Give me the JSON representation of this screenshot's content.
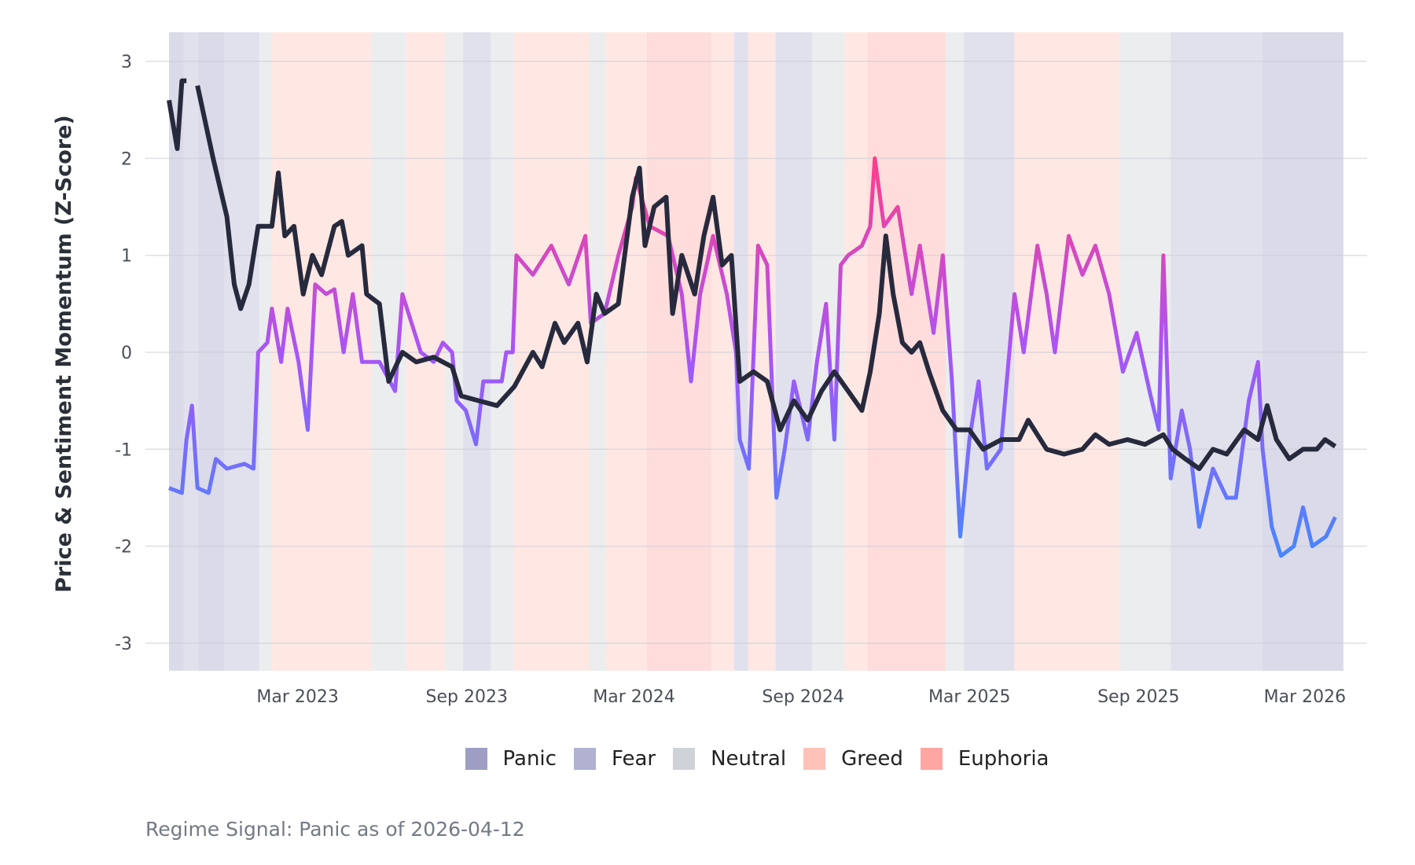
{
  "chart_data": {
    "type": "line",
    "title": "",
    "ylabel": "Price & Sentiment Momentum (Z-Score)",
    "xlabel": "",
    "x_unit": "days since start_date",
    "start_date": "2022-10-12",
    "end_date": "2026-04-12",
    "ylim": [
      -3.3,
      3.3
    ],
    "yticks": [
      3,
      2,
      1,
      0,
      -1,
      -2,
      -3
    ],
    "xticks": [
      {
        "label": "Mar 2023",
        "date": "2023-03-01"
      },
      {
        "label": "Sep 2023",
        "date": "2023-09-01"
      },
      {
        "label": "Mar 2024",
        "date": "2024-03-01"
      },
      {
        "label": "Sep 2024",
        "date": "2024-09-01"
      },
      {
        "label": "Mar 2025",
        "date": "2025-03-01"
      },
      {
        "label": "Sep 2025",
        "date": "2025-09-01"
      },
      {
        "label": "Mar 2026",
        "date": "2026-03-01"
      }
    ],
    "grid": "horizontal",
    "legend_position": "bottom-center",
    "legend": [
      {
        "label": "Panic",
        "color": "#9e9ec4"
      },
      {
        "label": "Fear",
        "color": "#b1b1d1"
      },
      {
        "label": "Neutral",
        "color": "#cfd3d7"
      },
      {
        "label": "Greed",
        "color": "#ffc2b8"
      },
      {
        "label": "Euphoria",
        "color": "#ffa6a3"
      }
    ],
    "regimes": [
      [
        0,
        16,
        "Panic"
      ],
      [
        16,
        32,
        "Fear"
      ],
      [
        32,
        60,
        "Panic"
      ],
      [
        60,
        98,
        "Fear"
      ],
      [
        98,
        112,
        "Neutral"
      ],
      [
        112,
        220,
        "Greed"
      ],
      [
        220,
        258,
        "Neutral"
      ],
      [
        258,
        300,
        "Greed"
      ],
      [
        300,
        320,
        "Neutral"
      ],
      [
        320,
        350,
        "Fear"
      ],
      [
        350,
        375,
        "Neutral"
      ],
      [
        375,
        458,
        "Greed"
      ],
      [
        458,
        475,
        "Neutral"
      ],
      [
        475,
        520,
        "Greed"
      ],
      [
        520,
        590,
        "Euphoria"
      ],
      [
        590,
        615,
        "Greed"
      ],
      [
        615,
        630,
        "Fear"
      ],
      [
        630,
        660,
        "Greed"
      ],
      [
        660,
        700,
        "Fear"
      ],
      [
        700,
        735,
        "Neutral"
      ],
      [
        735,
        760,
        "Greed"
      ],
      [
        760,
        845,
        "Euphoria"
      ],
      [
        845,
        865,
        "Neutral"
      ],
      [
        865,
        920,
        "Fear"
      ],
      [
        920,
        1035,
        "Greed"
      ],
      [
        1035,
        1090,
        "Neutral"
      ],
      [
        1090,
        1190,
        "Fear"
      ],
      [
        1190,
        1278,
        "Panic"
      ]
    ],
    "series": [
      {
        "name": "Price Momentum",
        "color": "#272a3d",
        "points": [
          [
            0,
            2.6
          ],
          [
            9,
            2.1
          ],
          [
            14,
            2.8
          ],
          [
            19,
            2.8
          ],
          [
            25,
            null
          ],
          [
            31,
            2.75
          ],
          [
            48,
            2.0
          ],
          [
            63,
            1.4
          ],
          [
            71,
            0.7
          ],
          [
            78,
            0.45
          ],
          [
            87,
            0.7
          ],
          [
            97,
            1.3
          ],
          [
            112,
            1.3
          ],
          [
            119,
            1.85
          ],
          [
            126,
            1.2
          ],
          [
            136,
            1.3
          ],
          [
            146,
            0.6
          ],
          [
            156,
            1.0
          ],
          [
            166,
            0.8
          ],
          [
            180,
            1.3
          ],
          [
            188,
            1.35
          ],
          [
            195,
            1.0
          ],
          [
            210,
            1.1
          ],
          [
            215,
            0.6
          ],
          [
            229,
            0.5
          ],
          [
            239,
            -0.3
          ],
          [
            254,
            0.0
          ],
          [
            269,
            -0.1
          ],
          [
            288,
            -0.05
          ],
          [
            308,
            -0.15
          ],
          [
            318,
            -0.45
          ],
          [
            337,
            -0.5
          ],
          [
            357,
            -0.55
          ],
          [
            376,
            -0.35
          ],
          [
            396,
            0.0
          ],
          [
            406,
            -0.15
          ],
          [
            420,
            0.3
          ],
          [
            430,
            0.1
          ],
          [
            445,
            0.3
          ],
          [
            455,
            -0.1
          ],
          [
            465,
            0.6
          ],
          [
            474,
            0.4
          ],
          [
            489,
            0.5
          ],
          [
            504,
            1.6
          ],
          [
            512,
            1.9
          ],
          [
            518,
            1.1
          ],
          [
            528,
            1.5
          ],
          [
            541,
            1.6
          ],
          [
            548,
            0.4
          ],
          [
            558,
            1.0
          ],
          [
            572,
            0.6
          ],
          [
            582,
            1.2
          ],
          [
            592,
            1.6
          ],
          [
            602,
            0.9
          ],
          [
            612,
            1.0
          ],
          [
            621,
            -0.3
          ],
          [
            636,
            -0.2
          ],
          [
            651,
            -0.3
          ],
          [
            665,
            -0.8
          ],
          [
            680,
            -0.5
          ],
          [
            695,
            -0.7
          ],
          [
            710,
            -0.4
          ],
          [
            724,
            -0.2
          ],
          [
            739,
            -0.4
          ],
          [
            754,
            -0.6
          ],
          [
            763,
            -0.2
          ],
          [
            773,
            0.4
          ],
          [
            780,
            1.2
          ],
          [
            788,
            0.6
          ],
          [
            798,
            0.1
          ],
          [
            808,
            0.0
          ],
          [
            817,
            0.1
          ],
          [
            827,
            -0.2
          ],
          [
            842,
            -0.6
          ],
          [
            857,
            -0.8
          ],
          [
            871,
            -0.8
          ],
          [
            886,
            -1.0
          ],
          [
            906,
            -0.9
          ],
          [
            925,
            -0.9
          ],
          [
            935,
            -0.7
          ],
          [
            955,
            -1.0
          ],
          [
            974,
            -1.05
          ],
          [
            994,
            -1.0
          ],
          [
            1008,
            -0.85
          ],
          [
            1023,
            -0.95
          ],
          [
            1043,
            -0.9
          ],
          [
            1062,
            -0.95
          ],
          [
            1082,
            -0.85
          ],
          [
            1092,
            -1.0
          ],
          [
            1106,
            -1.1
          ],
          [
            1121,
            -1.2
          ],
          [
            1136,
            -1.0
          ],
          [
            1151,
            -1.05
          ],
          [
            1170,
            -0.8
          ],
          [
            1185,
            -0.9
          ],
          [
            1195,
            -0.55
          ],
          [
            1205,
            -0.9
          ],
          [
            1219,
            -1.1
          ],
          [
            1234,
            -1.0
          ],
          [
            1249,
            -1.0
          ],
          [
            1258,
            -0.9
          ],
          [
            1269,
            -0.97
          ]
        ]
      },
      {
        "name": "Sentiment Momentum",
        "color_scale": [
          "#4a84ff",
          "#a855f7",
          "#ff3d8b"
        ],
        "points": [
          [
            0,
            -1.4
          ],
          [
            14,
            -1.45
          ],
          [
            19,
            -0.9
          ],
          [
            25,
            -0.55
          ],
          [
            31,
            -1.4
          ],
          [
            43,
            -1.45
          ],
          [
            51,
            -1.1
          ],
          [
            63,
            -1.2
          ],
          [
            82,
            -1.15
          ],
          [
            92,
            -1.2
          ],
          [
            97,
            0.0
          ],
          [
            107,
            0.1
          ],
          [
            112,
            0.45
          ],
          [
            122,
            -0.1
          ],
          [
            129,
            0.45
          ],
          [
            141,
            -0.1
          ],
          [
            151,
            -0.8
          ],
          [
            159,
            0.7
          ],
          [
            171,
            0.6
          ],
          [
            180,
            0.65
          ],
          [
            190,
            0.0
          ],
          [
            200,
            0.6
          ],
          [
            210,
            -0.1
          ],
          [
            229,
            -0.1
          ],
          [
            246,
            -0.4
          ],
          [
            254,
            0.6
          ],
          [
            264,
            0.3
          ],
          [
            274,
            0.0
          ],
          [
            288,
            -0.1
          ],
          [
            298,
            0.1
          ],
          [
            308,
            0.0
          ],
          [
            313,
            -0.5
          ],
          [
            323,
            -0.6
          ],
          [
            334,
            -0.95
          ],
          [
            342,
            -0.3
          ],
          [
            362,
            -0.3
          ],
          [
            367,
            0.0
          ],
          [
            374,
            0.0
          ],
          [
            378,
            1.0
          ],
          [
            396,
            0.8
          ],
          [
            416,
            1.1
          ],
          [
            435,
            0.7
          ],
          [
            453,
            1.2
          ],
          [
            459,
            0.3
          ],
          [
            474,
            0.4
          ],
          [
            489,
            1.0
          ],
          [
            504,
            1.5
          ],
          [
            508,
            1.8
          ],
          [
            523,
            1.3
          ],
          [
            543,
            1.2
          ],
          [
            558,
            0.6
          ],
          [
            568,
            -0.3
          ],
          [
            578,
            0.6
          ],
          [
            592,
            1.2
          ],
          [
            607,
            0.6
          ],
          [
            617,
            0.0
          ],
          [
            621,
            -0.9
          ],
          [
            631,
            -1.2
          ],
          [
            641,
            1.1
          ],
          [
            651,
            0.9
          ],
          [
            661,
            -1.5
          ],
          [
            670,
            -1.0
          ],
          [
            680,
            -0.3
          ],
          [
            695,
            -0.9
          ],
          [
            705,
            -0.1
          ],
          [
            715,
            0.5
          ],
          [
            724,
            -0.9
          ],
          [
            731,
            0.9
          ],
          [
            739,
            1.0
          ],
          [
            754,
            1.1
          ],
          [
            763,
            1.3
          ],
          [
            768,
            2.0
          ],
          [
            778,
            1.3
          ],
          [
            793,
            1.5
          ],
          [
            808,
            0.6
          ],
          [
            817,
            1.1
          ],
          [
            832,
            0.2
          ],
          [
            842,
            1.0
          ],
          [
            852,
            -0.3
          ],
          [
            861,
            -1.9
          ],
          [
            871,
            -0.9
          ],
          [
            881,
            -0.3
          ],
          [
            890,
            -1.2
          ],
          [
            905,
            -1.0
          ],
          [
            920,
            0.6
          ],
          [
            930,
            0.0
          ],
          [
            945,
            1.1
          ],
          [
            955,
            0.6
          ],
          [
            964,
            0.0
          ],
          [
            979,
            1.2
          ],
          [
            994,
            0.8
          ],
          [
            1008,
            1.1
          ],
          [
            1023,
            0.6
          ],
          [
            1038,
            -0.2
          ],
          [
            1053,
            0.2
          ],
          [
            1067,
            -0.4
          ],
          [
            1077,
            -0.8
          ],
          [
            1082,
            1.0
          ],
          [
            1090,
            -1.3
          ],
          [
            1102,
            -0.6
          ],
          [
            1111,
            -1.0
          ],
          [
            1121,
            -1.8
          ],
          [
            1136,
            -1.2
          ],
          [
            1151,
            -1.5
          ],
          [
            1161,
            -1.5
          ],
          [
            1175,
            -0.5
          ],
          [
            1185,
            -0.1
          ],
          [
            1190,
            -1.0
          ],
          [
            1200,
            -1.8
          ],
          [
            1210,
            -2.1
          ],
          [
            1224,
            -2.0
          ],
          [
            1234,
            -1.6
          ],
          [
            1244,
            -2.0
          ],
          [
            1259,
            -1.9
          ],
          [
            1269,
            -1.7
          ]
        ]
      }
    ]
  },
  "footnote": "Regime Signal: Panic as of 2026-04-12"
}
